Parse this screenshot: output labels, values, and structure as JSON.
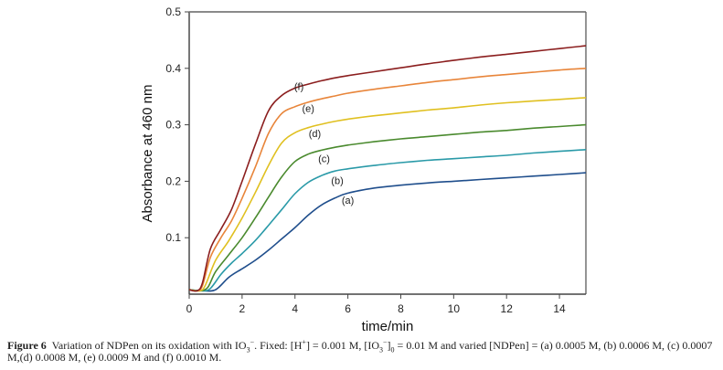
{
  "chart_data": {
    "type": "line",
    "title": "",
    "xlabel": "time/min",
    "ylabel": "Absorbance at 460 nm",
    "xlim": [
      0,
      15
    ],
    "ylim": [
      0,
      0.5
    ],
    "xticks": [
      0,
      2,
      4,
      6,
      8,
      10,
      12,
      14
    ],
    "xtick_labels": [
      "0",
      "2",
      "4",
      "6",
      "8",
      "10",
      "12",
      "14"
    ],
    "yticks": [
      0.1,
      0.2,
      0.3,
      0.4,
      0.5
    ],
    "ytick_labels": [
      "0.1",
      "0.2",
      "0.3",
      "0.4",
      "0.5"
    ],
    "grid": false,
    "legend": "inline curve labels",
    "series": [
      {
        "name": "(a)",
        "label": "(a)",
        "color": "#1f4e8c",
        "label_at": [
          6.0,
          0.16
        ],
        "x": [
          0,
          0.5,
          1.0,
          1.5,
          2.0,
          2.5,
          3.0,
          3.5,
          4.0,
          4.5,
          5.0,
          5.5,
          6.0,
          7.0,
          8.0,
          9.0,
          10.0,
          11.0,
          12.0,
          13.0,
          14.0,
          15.0
        ],
        "y": [
          0.008,
          0.006,
          0.008,
          0.03,
          0.045,
          0.06,
          0.078,
          0.098,
          0.118,
          0.14,
          0.158,
          0.17,
          0.179,
          0.188,
          0.193,
          0.197,
          0.2,
          0.203,
          0.206,
          0.209,
          0.212,
          0.215
        ]
      },
      {
        "name": "(b)",
        "label": "(b)",
        "color": "#2a9aa8",
        "label_at": [
          5.6,
          0.195
        ],
        "x": [
          0,
          0.5,
          0.8,
          1.2,
          1.6,
          2.0,
          2.5,
          3.0,
          3.5,
          4.0,
          4.5,
          5.0,
          5.5,
          6.0,
          7.0,
          8.0,
          9.0,
          10.0,
          11.0,
          12.0,
          13.0,
          14.0,
          15.0
        ],
        "y": [
          0.008,
          0.006,
          0.01,
          0.035,
          0.055,
          0.072,
          0.095,
          0.122,
          0.15,
          0.178,
          0.198,
          0.21,
          0.218,
          0.222,
          0.228,
          0.233,
          0.237,
          0.24,
          0.243,
          0.246,
          0.25,
          0.253,
          0.256
        ]
      },
      {
        "name": "(c)",
        "label": "(c)",
        "color": "#4a8a2e",
        "label_at": [
          5.1,
          0.234
        ],
        "x": [
          0,
          0.4,
          0.7,
          1.0,
          1.5,
          2.0,
          2.5,
          3.0,
          3.5,
          4.0,
          4.5,
          5.0,
          5.5,
          6.0,
          7.0,
          8.0,
          9.0,
          10.0,
          11.0,
          12.0,
          13.0,
          14.0,
          15.0
        ],
        "y": [
          0.008,
          0.006,
          0.012,
          0.04,
          0.07,
          0.1,
          0.135,
          0.172,
          0.208,
          0.235,
          0.248,
          0.255,
          0.26,
          0.264,
          0.27,
          0.275,
          0.279,
          0.283,
          0.287,
          0.29,
          0.294,
          0.297,
          0.3
        ]
      },
      {
        "name": "(d)",
        "label": "(d)",
        "color": "#e0c020",
        "label_at": [
          4.75,
          0.278
        ],
        "x": [
          0,
          0.4,
          0.6,
          1.0,
          1.5,
          2.0,
          2.5,
          3.0,
          3.5,
          4.0,
          4.5,
          5.0,
          5.5,
          6.0,
          7.0,
          8.0,
          9.0,
          10.0,
          11.0,
          12.0,
          13.0,
          14.0,
          15.0
        ],
        "y": [
          0.008,
          0.006,
          0.015,
          0.06,
          0.095,
          0.135,
          0.18,
          0.228,
          0.268,
          0.286,
          0.295,
          0.301,
          0.306,
          0.31,
          0.316,
          0.321,
          0.326,
          0.33,
          0.335,
          0.339,
          0.342,
          0.345,
          0.348
        ]
      },
      {
        "name": "(e)",
        "label": "(e)",
        "color": "#e8853a",
        "label_at": [
          4.5,
          0.323
        ],
        "x": [
          0,
          0.3,
          0.5,
          0.8,
          1.2,
          1.6,
          2.0,
          2.5,
          3.0,
          3.5,
          4.0,
          4.5,
          5.0,
          5.5,
          6.0,
          7.0,
          8.0,
          9.0,
          10.0,
          11.0,
          12.0,
          13.0,
          14.0,
          15.0
        ],
        "y": [
          0.008,
          0.006,
          0.015,
          0.065,
          0.1,
          0.13,
          0.17,
          0.225,
          0.285,
          0.32,
          0.332,
          0.34,
          0.346,
          0.351,
          0.356,
          0.363,
          0.369,
          0.375,
          0.38,
          0.385,
          0.389,
          0.393,
          0.397,
          0.4
        ]
      },
      {
        "name": "(f)",
        "label": "(f)",
        "color": "#8b1e1e",
        "label_at": [
          4.15,
          0.362
        ],
        "x": [
          0,
          0.3,
          0.5,
          0.8,
          1.2,
          1.6,
          2.0,
          2.5,
          3.0,
          3.5,
          4.0,
          4.5,
          5.0,
          5.5,
          6.0,
          7.0,
          8.0,
          9.0,
          10.0,
          11.0,
          12.0,
          13.0,
          14.0,
          15.0
        ],
        "y": [
          0.008,
          0.006,
          0.02,
          0.08,
          0.115,
          0.15,
          0.2,
          0.265,
          0.325,
          0.352,
          0.365,
          0.372,
          0.378,
          0.383,
          0.387,
          0.394,
          0.401,
          0.408,
          0.414,
          0.42,
          0.425,
          0.43,
          0.435,
          0.44
        ]
      }
    ]
  },
  "caption": {
    "figure_label": "Figure 6",
    "text_parts": {
      "p1": "Variation of NDPen on its oxidation with IO",
      "p1_sub": "3",
      "p1_sup": "−",
      "p2": ". Fixed: [H",
      "p2_sup": "+",
      "p3": "] = 0.001 M, [IO",
      "p3_sub": "3",
      "p3_sup": "−",
      "p4": "]",
      "p4_sub": "0",
      "p5": " = 0.01 M and varied [NDPen] = (a) 0.0005 M, (b) 0.0006 M, (c) 0.0007 M,(d) 0.0008 M, (e) 0.0009 M and (f) 0.0010 M."
    }
  }
}
